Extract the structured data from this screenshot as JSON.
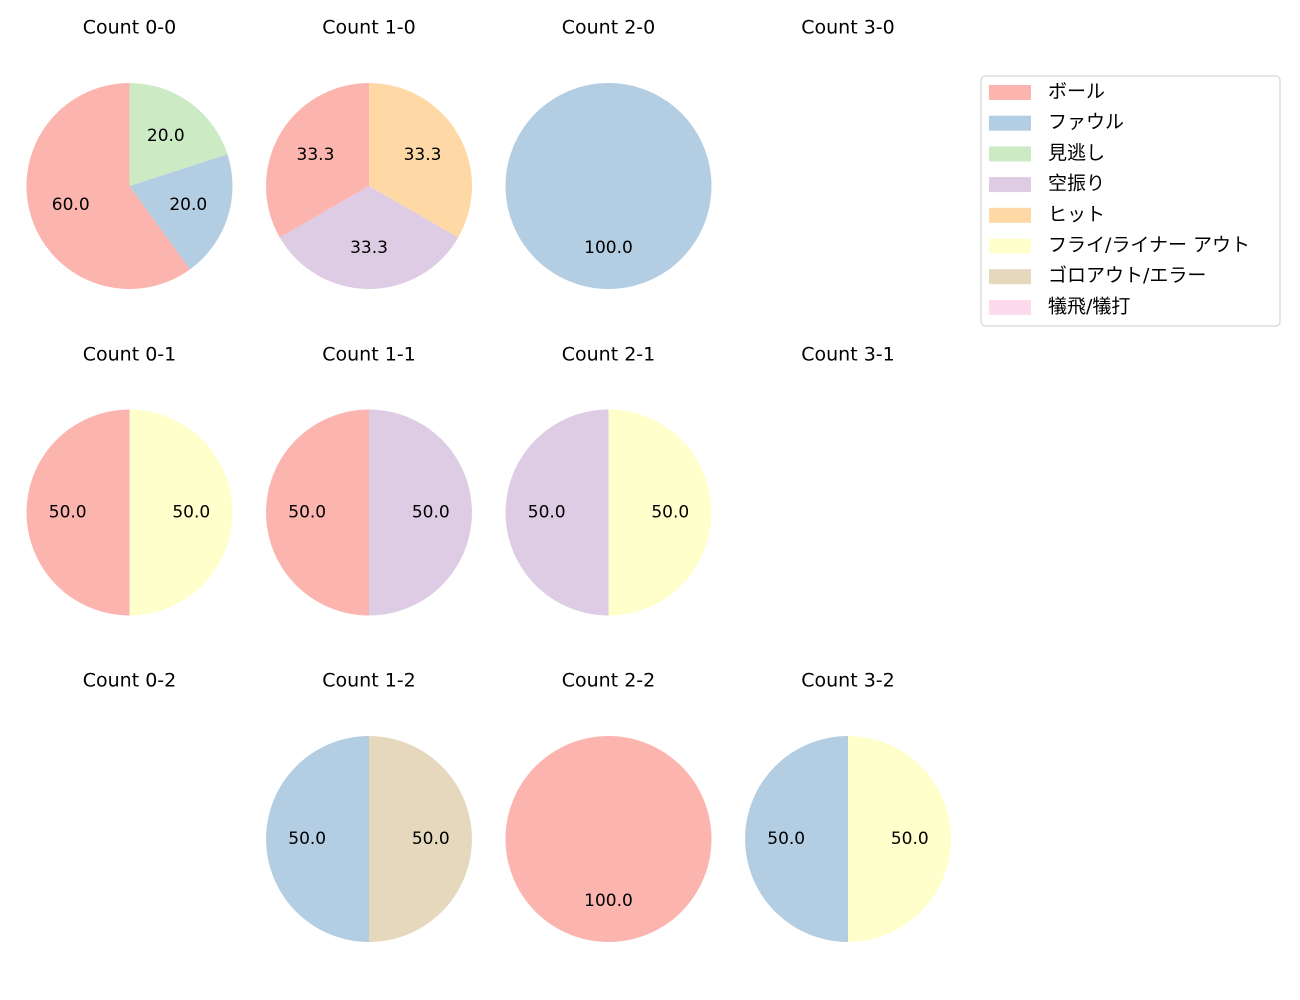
{
  "categories": [
    {
      "key": "ball",
      "label": "ボール",
      "color": "#fbb4ae"
    },
    {
      "key": "foul",
      "label": "ファウル",
      "color": "#b3cde3"
    },
    {
      "key": "called",
      "label": "見逃し",
      "color": "#ccebc5"
    },
    {
      "key": "swing",
      "label": "空振り",
      "color": "#decbe4"
    },
    {
      "key": "hit",
      "label": "ヒット",
      "color": "#fed9a6"
    },
    {
      "key": "flyout",
      "label": "フライ/ライナー アウト",
      "color": "#ffffcc"
    },
    {
      "key": "groundout",
      "label": "ゴロアウト/エラー",
      "color": "#e5d8bd"
    },
    {
      "key": "sac",
      "label": "犠飛/犠打",
      "color": "#fddaec"
    }
  ],
  "chart_data": [
    {
      "type": "pie",
      "title": "Count 0-0",
      "slices": [
        {
          "category": "ball",
          "value": 60.0,
          "label": "60.0"
        },
        {
          "category": "foul",
          "value": 20.0,
          "label": "20.0"
        },
        {
          "category": "called",
          "value": 20.0,
          "label": "20.0"
        }
      ]
    },
    {
      "type": "pie",
      "title": "Count 1-0",
      "slices": [
        {
          "category": "ball",
          "value": 33.3,
          "label": "33.3"
        },
        {
          "category": "swing",
          "value": 33.3,
          "label": "33.3"
        },
        {
          "category": "hit",
          "value": 33.3,
          "label": "33.3"
        }
      ]
    },
    {
      "type": "pie",
      "title": "Count 2-0",
      "slices": [
        {
          "category": "foul",
          "value": 100.0,
          "label": "100.0"
        }
      ]
    },
    {
      "type": "pie",
      "title": "Count 3-0",
      "slices": []
    },
    {
      "type": "pie",
      "title": "Count 0-1",
      "slices": [
        {
          "category": "ball",
          "value": 50.0,
          "label": "50.0"
        },
        {
          "category": "flyout",
          "value": 50.0,
          "label": "50.0"
        }
      ]
    },
    {
      "type": "pie",
      "title": "Count 1-1",
      "slices": [
        {
          "category": "ball",
          "value": 50.0,
          "label": "50.0"
        },
        {
          "category": "swing",
          "value": 50.0,
          "label": "50.0"
        }
      ]
    },
    {
      "type": "pie",
      "title": "Count 2-1",
      "slices": [
        {
          "category": "swing",
          "value": 50.0,
          "label": "50.0"
        },
        {
          "category": "flyout",
          "value": 50.0,
          "label": "50.0"
        }
      ]
    },
    {
      "type": "pie",
      "title": "Count 3-1",
      "slices": []
    },
    {
      "type": "pie",
      "title": "Count 0-2",
      "slices": []
    },
    {
      "type": "pie",
      "title": "Count 1-2",
      "slices": [
        {
          "category": "foul",
          "value": 50.0,
          "label": "50.0"
        },
        {
          "category": "groundout",
          "value": 50.0,
          "label": "50.0"
        }
      ]
    },
    {
      "type": "pie",
      "title": "Count 2-2",
      "slices": [
        {
          "category": "ball",
          "value": 100.0,
          "label": "100.0"
        }
      ]
    },
    {
      "type": "pie",
      "title": "Count 3-2",
      "slices": [
        {
          "category": "foul",
          "value": 50.0,
          "label": "50.0"
        },
        {
          "category": "flyout",
          "value": 50.0,
          "label": "50.0"
        }
      ]
    }
  ]
}
